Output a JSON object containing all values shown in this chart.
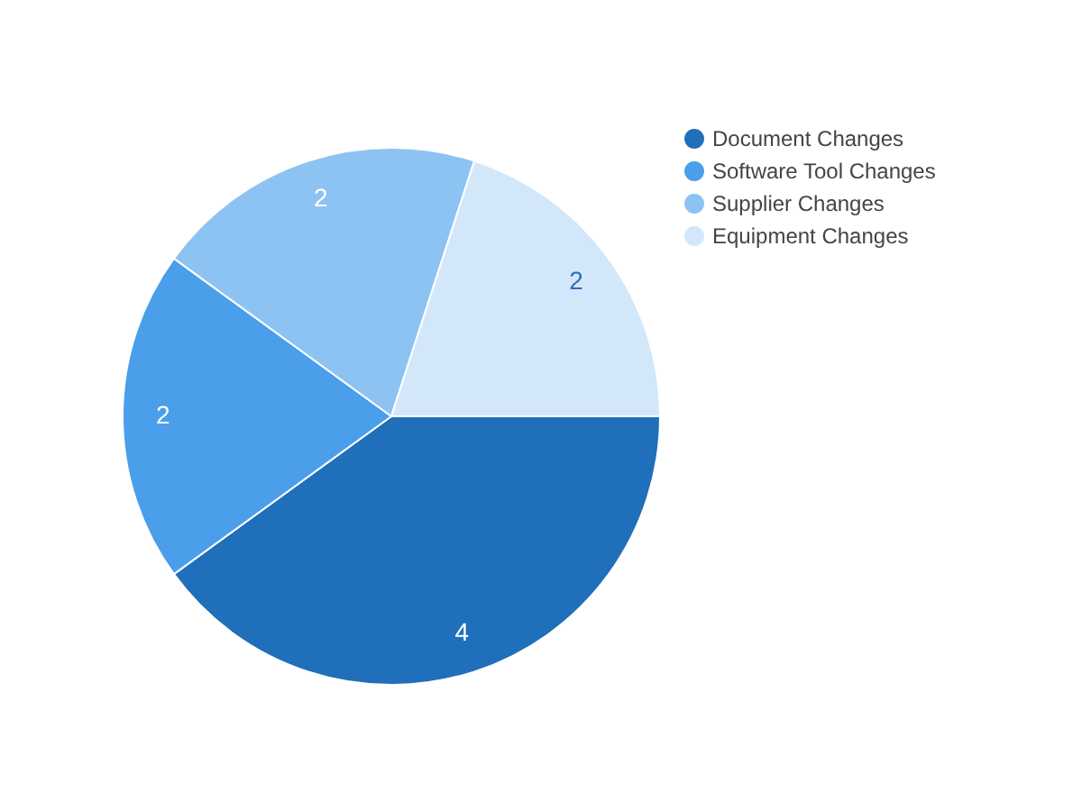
{
  "chart_data": {
    "type": "pie",
    "categories": [
      "Document Changes",
      "Software Tool Changes",
      "Supplier Changes",
      "Equipment Changes"
    ],
    "values": [
      4,
      2,
      2,
      2
    ],
    "colors": [
      "#1f6fba",
      "#4a9eea",
      "#8dc3f2",
      "#d2e7fa"
    ],
    "data_labels": true,
    "legend": "top right"
  }
}
